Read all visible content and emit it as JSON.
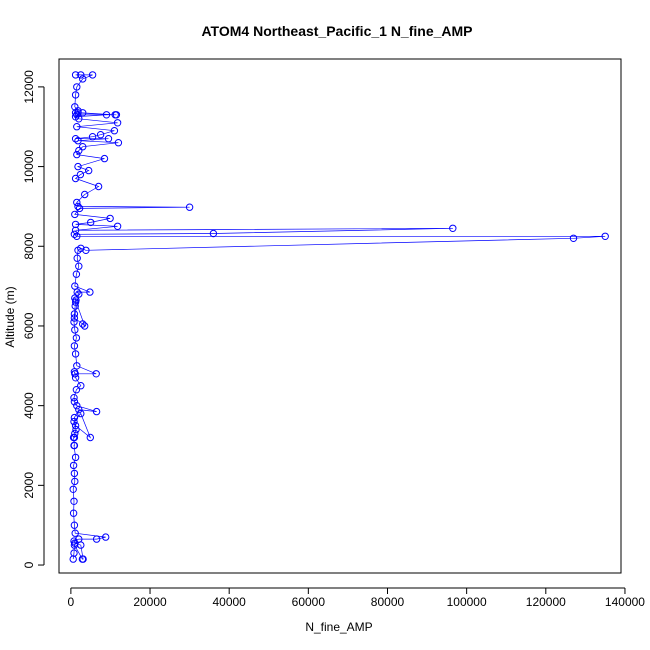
{
  "chart_data": {
    "type": "line",
    "title": "ATOM4 Northeast_Pacific_1 N_fine_AMP",
    "xlabel": "N_fine_AMP",
    "ylabel": "Altitude (m)",
    "xlim": [
      -3000,
      139000
    ],
    "ylim": [
      -200,
      12700
    ],
    "xticks": [
      0,
      20000,
      40000,
      60000,
      80000,
      100000,
      120000,
      140000
    ],
    "yticks": [
      0,
      2000,
      4000,
      6000,
      8000,
      10000,
      12000
    ],
    "series_color": "#0000ff",
    "marker": "open-circle",
    "series": [
      {
        "x": [
          600,
          800,
          900,
          2900,
          3100,
          2500,
          1000,
          800,
          2000,
          6500,
          8800,
          1100,
          900,
          700,
          800,
          600,
          1000,
          900,
          700,
          1200,
          800,
          900,
          700,
          900,
          1000,
          1300,
          800,
          2500,
          4900,
          1200,
          900,
          2000,
          6500,
          1500,
          900,
          800,
          1400,
          2500,
          1200,
          1000,
          900,
          1100,
          6400,
          1500,
          1200,
          900,
          1400,
          1000,
          800,
          900,
          1100,
          1200,
          1300,
          1000,
          3500,
          3000,
          900,
          2000,
          1600,
          4800,
          1000,
          1400,
          2000,
          1600,
          1800,
          2500,
          3800,
          127000,
          135000,
          1500,
          900,
          36000,
          96500,
          1200,
          11800,
          1200,
          5000,
          9900,
          1000,
          2200,
          30000,
          1800,
          1500,
          3500,
          7000,
          1200,
          2400,
          4500,
          1800,
          8500,
          1500,
          2000,
          3000,
          12000,
          1800,
          9500,
          1200,
          5500,
          7500,
          11000,
          1500,
          11800,
          2000,
          1200,
          9000,
          1500,
          11500,
          1800,
          3000,
          11200,
          1200,
          1800,
          1000,
          1200,
          1500,
          3000,
          5500,
          2500,
          1200
        ],
        "y": [
          150,
          300,
          500,
          150,
          150,
          500,
          550,
          600,
          650,
          650,
          700,
          800,
          1000,
          1300,
          1600,
          1900,
          2100,
          2300,
          2500,
          2700,
          3000,
          3000,
          3200,
          3200,
          3300,
          3400,
          3600,
          3800,
          3200,
          3500,
          3700,
          3900,
          3850,
          4000,
          4100,
          4200,
          4400,
          4500,
          4700,
          4800,
          4850,
          4800,
          4800,
          5000,
          5300,
          5500,
          5700,
          5900,
          6100,
          6300,
          6500,
          6600,
          6650,
          6700,
          6000,
          6050,
          6200,
          6800,
          6850,
          6850,
          7000,
          7300,
          7500,
          7700,
          7900,
          7950,
          7900,
          8200,
          8250,
          8250,
          8300,
          8320,
          8450,
          8400,
          8500,
          8550,
          8600,
          8700,
          8800,
          8950,
          8980,
          9000,
          9100,
          9300,
          9500,
          9700,
          9800,
          9900,
          10000,
          10200,
          10300,
          10400,
          10500,
          10600,
          10650,
          10700,
          10700,
          10750,
          10800,
          10900,
          11000,
          11100,
          11200,
          11250,
          11300,
          11300,
          11300,
          11350,
          11350,
          11300,
          11350,
          11400,
          11500,
          11800,
          12000,
          12200,
          12300,
          12300,
          12300
        ]
      }
    ]
  }
}
